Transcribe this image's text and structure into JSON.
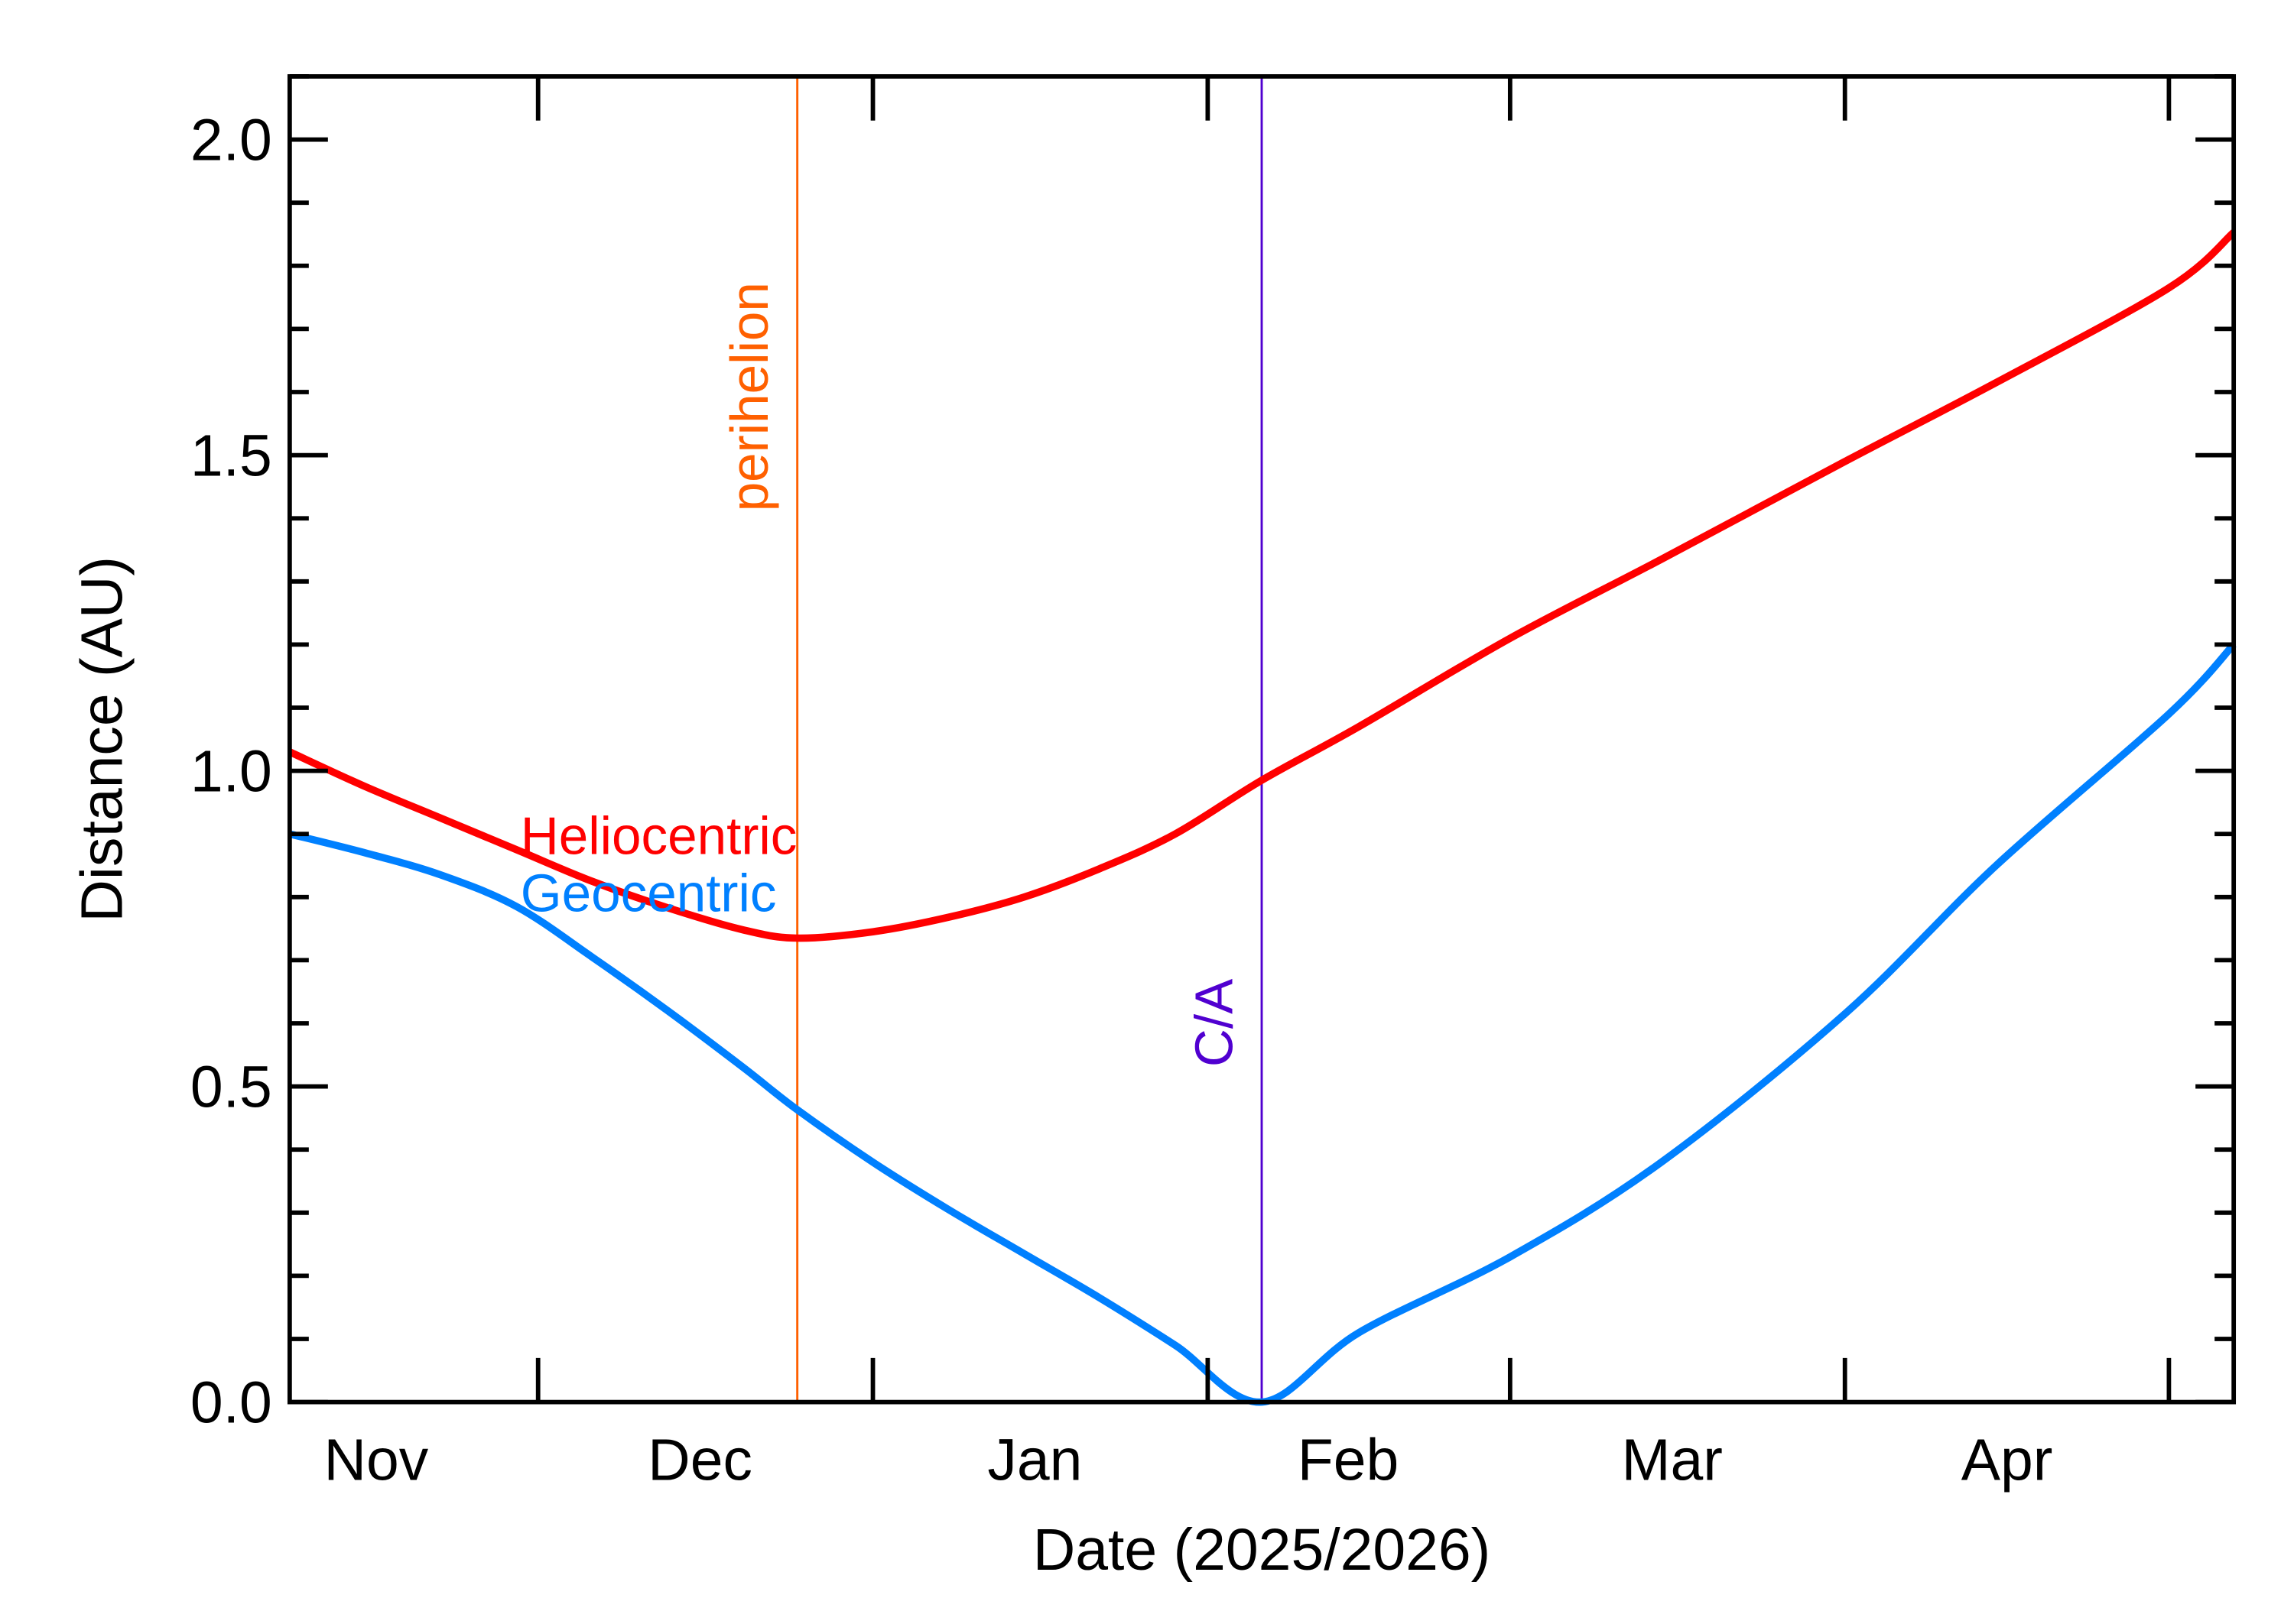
{
  "chart_data": {
    "type": "line",
    "title": "",
    "xlabel": "Date (2025/2026)",
    "ylabel": "Distance (AU)",
    "xlim": [
      "2025-11-08",
      "2026-05-07"
    ],
    "ylim": [
      0,
      2.1
    ],
    "y_ticks": [
      "0.0",
      "0.5",
      "1.0",
      "1.5",
      "2.0"
    ],
    "y_minor_step": 0.1,
    "x_major_ticks": [
      "2025-12-01",
      "2026-01-01",
      "2026-02-01",
      "2026-03-01",
      "2026-04-01",
      "2026-05-01"
    ],
    "x_tick_labels": [
      {
        "label": "Nov",
        "date": "2025-11-16"
      },
      {
        "label": "Dec",
        "date": "2025-12-16"
      },
      {
        "label": "Jan",
        "date": "2026-01-16"
      },
      {
        "label": "Feb",
        "date": "2026-02-14"
      },
      {
        "label": "Mar",
        "date": "2026-03-16"
      },
      {
        "label": "Apr",
        "date": "2026-04-16"
      }
    ],
    "grid": false,
    "series": [
      {
        "name": "Heliocentric",
        "color": "#ff0000",
        "points": [
          [
            "2025-11-08",
            1.03
          ],
          [
            "2025-11-15",
            0.975
          ],
          [
            "2025-11-22",
            0.925
          ],
          [
            "2025-11-29",
            0.875
          ],
          [
            "2025-12-06",
            0.825
          ],
          [
            "2025-12-13",
            0.783
          ],
          [
            "2025-12-20",
            0.748
          ],
          [
            "2025-12-25",
            0.735
          ],
          [
            "2026-01-01",
            0.745
          ],
          [
            "2026-01-08",
            0.768
          ],
          [
            "2026-01-15",
            0.8
          ],
          [
            "2026-01-22",
            0.845
          ],
          [
            "2026-01-29",
            0.9
          ],
          [
            "2026-02-06",
            0.985
          ],
          [
            "2026-02-15",
            1.07
          ],
          [
            "2026-03-01",
            1.21
          ],
          [
            "2026-03-15",
            1.335
          ],
          [
            "2026-04-01",
            1.49
          ],
          [
            "2026-04-15",
            1.615
          ],
          [
            "2026-05-01",
            1.765
          ],
          [
            "2026-05-07",
            1.853
          ]
        ]
      },
      {
        "name": "Geocentric",
        "color": "#0080ff",
        "points": [
          [
            "2025-11-08",
            0.9
          ],
          [
            "2025-11-15",
            0.87
          ],
          [
            "2025-11-22",
            0.835
          ],
          [
            "2025-11-29",
            0.785
          ],
          [
            "2025-12-06",
            0.705
          ],
          [
            "2025-12-13",
            0.62
          ],
          [
            "2025-12-20",
            0.53
          ],
          [
            "2025-12-25",
            0.463
          ],
          [
            "2026-01-01",
            0.38
          ],
          [
            "2026-01-08",
            0.305
          ],
          [
            "2026-01-15",
            0.235
          ],
          [
            "2026-01-22",
            0.165
          ],
          [
            "2026-01-29",
            0.09
          ],
          [
            "2026-02-06",
            0.0
          ],
          [
            "2026-02-15",
            0.11
          ],
          [
            "2026-03-01",
            0.23
          ],
          [
            "2026-03-15",
            0.38
          ],
          [
            "2026-04-01",
            0.615
          ],
          [
            "2026-04-15",
            0.85
          ],
          [
            "2026-05-01",
            1.09
          ],
          [
            "2026-05-07",
            1.2
          ]
        ]
      }
    ],
    "events": [
      {
        "label": "perihelion",
        "date": "2025-12-25",
        "color": "#ff6000"
      },
      {
        "label": "C/A",
        "date": "2026-02-06",
        "color": "#5000d0"
      }
    ],
    "legend": {
      "placement": "inside-left",
      "entries": [
        "Heliocentric",
        "Geocentric"
      ]
    }
  }
}
